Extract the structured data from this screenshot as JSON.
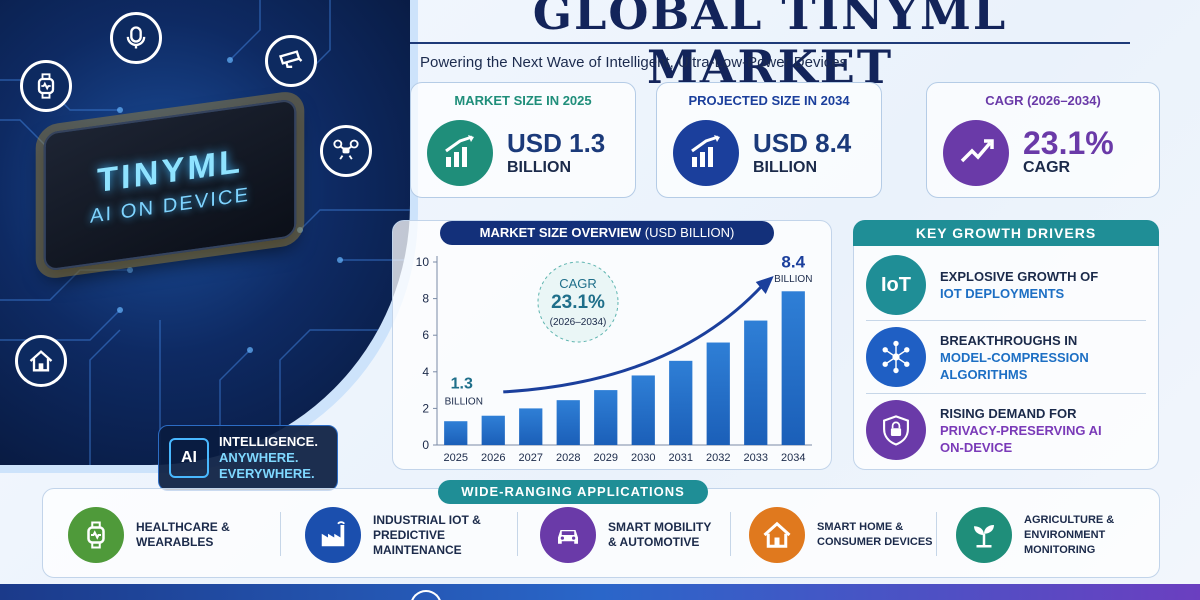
{
  "header": {
    "title": "GLOBAL TINYML MARKET",
    "subtitle": "Powering the Next Wave of Intelligent, Ultra-Low-Power Devices"
  },
  "hero": {
    "chip_title": "TINYML",
    "chip_subtitle": "AI ON DEVICE",
    "icons": [
      "microphone-icon",
      "smartwatch-icon",
      "security-camera-icon",
      "drone-icon",
      "smart-home-icon"
    ],
    "badge_icon_label": "AI",
    "tagline_l1": "INTELLIGENCE.",
    "tagline_l2": "ANYWHERE.",
    "tagline_l3": "EVERYWHERE."
  },
  "stats": [
    {
      "heading": "MARKET SIZE IN 2025",
      "value": "USD 1.3",
      "unit": "BILLION",
      "color": "#1f8e7a",
      "icon": "growth-chart-icon"
    },
    {
      "heading": "PROJECTED SIZE IN 2034",
      "value": "USD 8.4",
      "unit": "BILLION",
      "color": "#1b3f9c",
      "icon": "growth-chart-icon"
    },
    {
      "heading": "CAGR (2026–2034)",
      "value": "23.1%",
      "unit": "CAGR",
      "color": "#6a3aa8",
      "icon": "trend-arrow-icon"
    }
  ],
  "chart_banner": {
    "bold": "MARKET SIZE OVERVIEW",
    "normal": "(USD BILLION)"
  },
  "chart_data": {
    "type": "bar",
    "title": "MARKET SIZE OVERVIEW (USD BILLION)",
    "categories": [
      "2025",
      "2026",
      "2027",
      "2028",
      "2029",
      "2030",
      "2031",
      "2032",
      "2033",
      "2034"
    ],
    "values": [
      1.3,
      1.6,
      2.0,
      2.45,
      3.0,
      3.8,
      4.6,
      5.6,
      6.8,
      8.4
    ],
    "ylim": [
      0,
      10
    ],
    "yticks": [
      "0",
      "2",
      "4",
      "6",
      "8",
      "10"
    ],
    "grid": false,
    "annotations": {
      "start_value": "1.3",
      "start_unit": "BILLION",
      "end_value": "8.4",
      "end_unit": "BILLION",
      "cagr_label": "CAGR",
      "cagr_value": "23.1%",
      "cagr_period": "(2026–2034)"
    }
  },
  "drivers": {
    "heading": "KEY GROWTH DRIVERS",
    "items": [
      {
        "line1": "EXPLOSIVE GROWTH OF",
        "line2": "IoT DEPLOYMENTS",
        "line3": "",
        "icon_text": "IoT",
        "icon": "iot-icon",
        "color": "#1f8e96",
        "highlight": "#1d6fc4"
      },
      {
        "line1": "BREAKTHROUGHS IN",
        "line2": "MODEL-COMPRESSION",
        "line3": "ALGORITHMS",
        "icon_text": "",
        "icon": "neural-network-icon",
        "color": "#1f5fc4",
        "highlight": "#1d6fc4"
      },
      {
        "line1": "RISING DEMAND FOR",
        "line2": "PRIVACY-PRESERVING AI",
        "line3": "ON-DEVICE",
        "icon_text": "",
        "icon": "shield-lock-icon",
        "color": "#6a3aa8",
        "highlight": "#7a3ab8"
      }
    ]
  },
  "applications": {
    "heading": "WIDE-RANGING APPLICATIONS",
    "items": [
      {
        "line1": "HEALTHCARE &",
        "line2": "WEARABLES",
        "line3": "",
        "icon": "smartwatch-icon",
        "color": "#4f9a3a"
      },
      {
        "line1": "INDUSTRIAL IoT &",
        "line2": "PREDICTIVE",
        "line3": "MAINTENANCE",
        "icon": "factory-icon",
        "color": "#1b4fae"
      },
      {
        "line1": "SMART MOBILITY",
        "line2": "& AUTOMOTIVE",
        "line3": "",
        "icon": "car-icon",
        "color": "#6a3aa8"
      },
      {
        "line1": "SMART HOME &",
        "line2": "CONSUMER DEVICES",
        "line3": "",
        "icon": "house-icon",
        "color": "#e0791e"
      },
      {
        "line1": "AGRICULTURE &",
        "line2": "ENVIRONMENT",
        "line3": "MONITORING",
        "icon": "plant-icon",
        "color": "#1f8e7a"
      }
    ]
  }
}
